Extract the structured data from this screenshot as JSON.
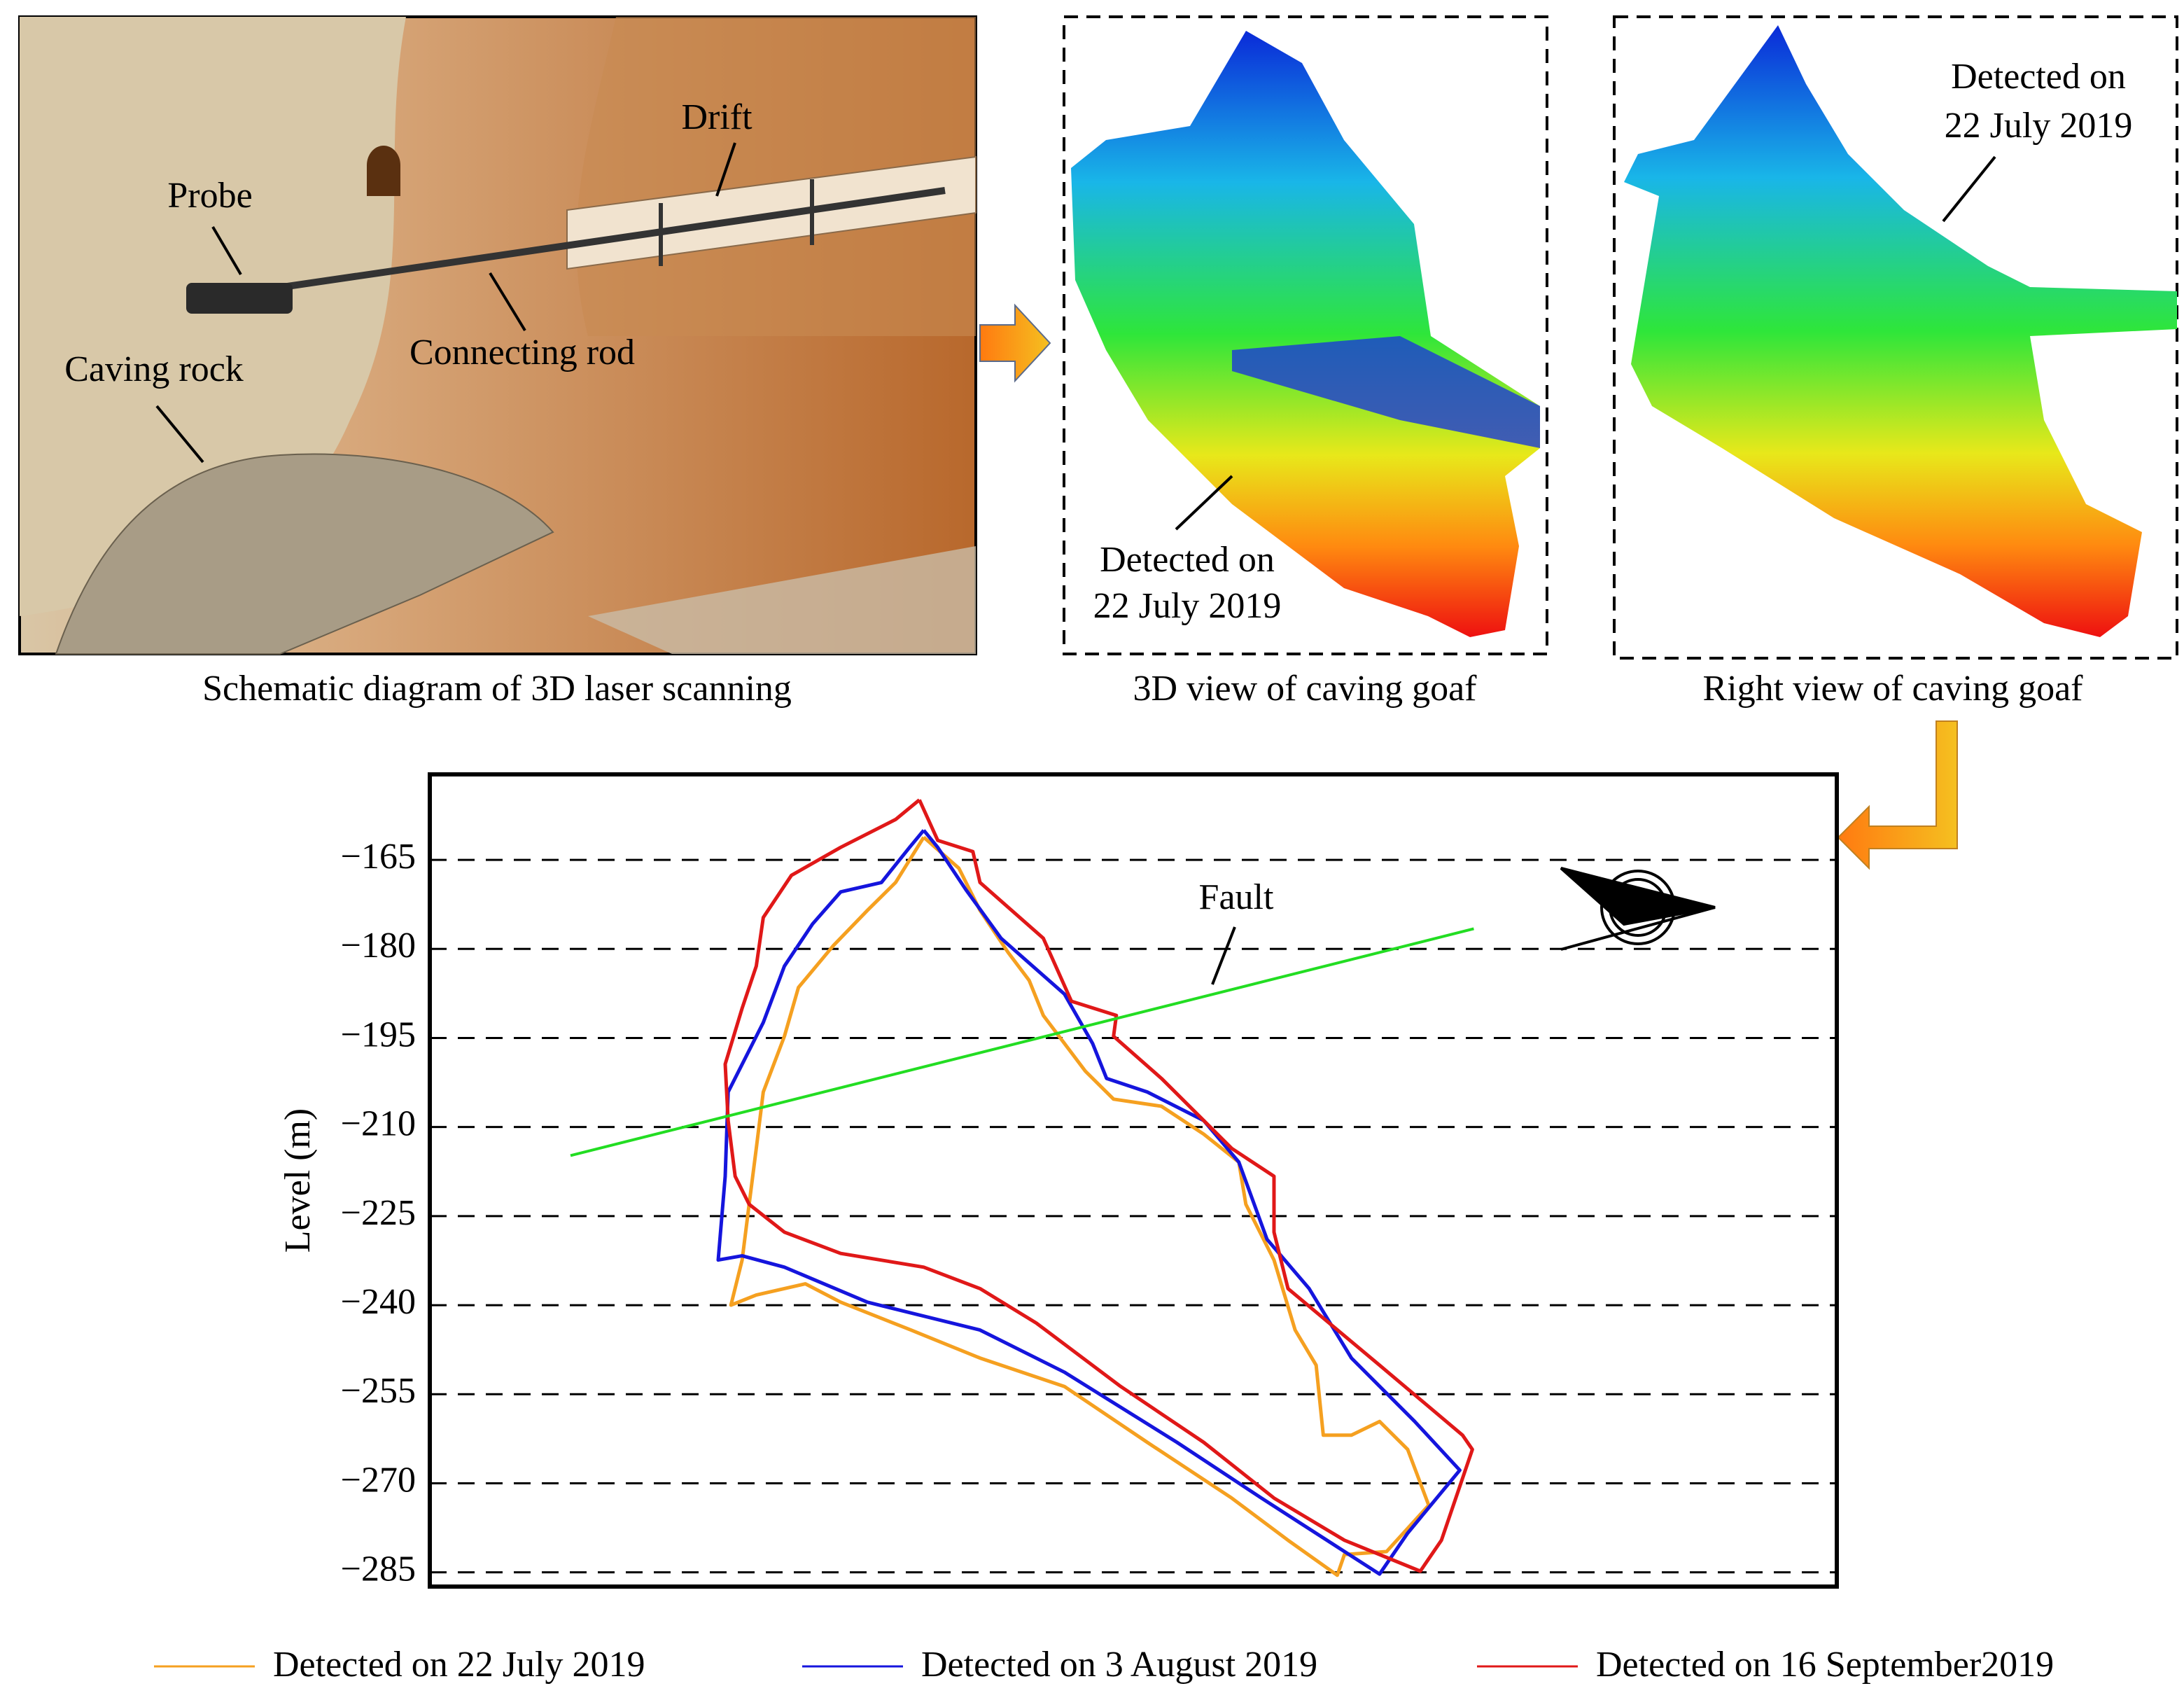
{
  "panels": [
    {
      "caption": "Schematic diagram of 3D laser scanning",
      "labels": [
        "Probe",
        "Drift",
        "Connecting rod",
        "Caving rock"
      ]
    },
    {
      "caption": "3D view of caving goaf",
      "labels": [
        "Detected on",
        "22 July 2019"
      ]
    },
    {
      "caption": "Right view of caving goaf",
      "labels": [
        "Detected on",
        "22 July 2019"
      ]
    }
  ],
  "chart_data": {
    "type": "line",
    "y_label": "Level (m)",
    "xlim": [
      0,
      100
    ],
    "ylim": [
      -287.4,
      -150.6
    ],
    "yticks": [
      {
        "value": -165,
        "label": "−165"
      },
      {
        "value": -180,
        "label": "−180"
      },
      {
        "value": -195,
        "label": "−195"
      },
      {
        "value": -210,
        "label": "−210"
      },
      {
        "value": -225,
        "label": "−225"
      },
      {
        "value": -240,
        "label": "−240"
      },
      {
        "value": -255,
        "label": "−255"
      },
      {
        "value": -270,
        "label": "−270"
      },
      {
        "value": -285,
        "label": "−285"
      }
    ],
    "grid": true,
    "fault": {
      "label": "Fault",
      "color": "#22dd22",
      "x": [
        10.0,
        74.2
      ],
      "values": [
        -214.8,
        -176.6
      ]
    },
    "series": [
      {
        "name": "Detected on 22 July 2019",
        "color": "#f5a020",
        "x": [
          35.1,
          33.1,
          31.1,
          28.7,
          26.2,
          25.2,
          23.7,
          23.2,
          22.7,
          22.2,
          21.4,
          23.2,
          26.7,
          29.2,
          34.2,
          39.1,
          45.1,
          51.0,
          57.0,
          61.0,
          64.5,
          65.0,
          68.0,
          71.0,
          69.5,
          67.5,
          65.5,
          63.5,
          63.0,
          61.5,
          60.0,
          58.0,
          57.5,
          55.0,
          52.0,
          48.6,
          46.6,
          43.6,
          42.6,
          41.1,
          39.1,
          37.6,
          35.1
        ],
        "values": [
          -161.2,
          -168.8,
          -173.5,
          -179.4,
          -186.5,
          -194.7,
          -204.1,
          -213.6,
          -223.0,
          -232.4,
          -240.0,
          -238.3,
          -236.4,
          -239.5,
          -244.2,
          -248.9,
          -253.7,
          -263.1,
          -272.5,
          -279.6,
          -285.5,
          -282.0,
          -281.5,
          -273.7,
          -264.3,
          -259.6,
          -261.9,
          -261.9,
          -250.1,
          -244.2,
          -232.4,
          -223.0,
          -215.9,
          -211.2,
          -206.5,
          -205.3,
          -200.6,
          -191.2,
          -185.3,
          -180.6,
          -173.5,
          -166.4,
          -161.2
        ]
      },
      {
        "name": "Detected on 3 August 2019",
        "color": "#1515dd",
        "x": [
          35.1,
          34.1,
          32.1,
          29.2,
          27.2,
          25.2,
          23.7,
          21.2,
          21.0,
          20.5,
          22.2,
          25.2,
          31.1,
          39.1,
          45.1,
          53.1,
          59.1,
          67.5,
          69.5,
          73.2,
          70.0,
          65.5,
          62.5,
          59.5,
          57.5,
          55.0,
          51.0,
          48.1,
          47.1,
          45.1,
          40.6,
          38.1,
          36.1,
          35.1
        ],
        "values": [
          -160.0,
          -162.9,
          -168.8,
          -170.4,
          -175.8,
          -182.9,
          -192.4,
          -204.1,
          -218.3,
          -232.4,
          -231.7,
          -233.6,
          -239.5,
          -244.2,
          -251.3,
          -263.1,
          -272.5,
          -285.3,
          -278.4,
          -267.8,
          -259.6,
          -248.9,
          -237.2,
          -228.9,
          -215.9,
          -208.9,
          -204.1,
          -201.8,
          -195.9,
          -187.6,
          -178.2,
          -170.0,
          -162.9,
          -160.0
        ]
      },
      {
        "name": "Detected on 16 September2019",
        "color": "#e01818",
        "x": [
          34.8,
          33.1,
          29.2,
          25.7,
          23.7,
          23.2,
          22.2,
          21.0,
          21.2,
          21.7,
          22.7,
          25.2,
          29.2,
          35.1,
          39.1,
          43.1,
          49.1,
          55.0,
          60.0,
          65.0,
          70.4,
          71.9,
          74.1,
          73.4,
          67.5,
          61.0,
          60.0,
          60.0,
          57.0,
          52.0,
          48.6,
          48.8,
          45.6,
          43.6,
          39.1,
          38.6,
          36.1,
          34.8
        ],
        "values": [
          -154.9,
          -158.2,
          -162.9,
          -167.6,
          -174.7,
          -182.9,
          -190.0,
          -199.4,
          -208.9,
          -218.3,
          -223.0,
          -227.7,
          -231.3,
          -233.6,
          -237.2,
          -243.0,
          -253.7,
          -263.1,
          -272.5,
          -279.6,
          -284.8,
          -279.6,
          -264.3,
          -261.9,
          -250.1,
          -237.2,
          -227.7,
          -218.3,
          -213.6,
          -201.8,
          -194.7,
          -191.2,
          -188.8,
          -178.2,
          -168.8,
          -163.6,
          -161.7,
          -154.9
        ]
      }
    ]
  }
}
